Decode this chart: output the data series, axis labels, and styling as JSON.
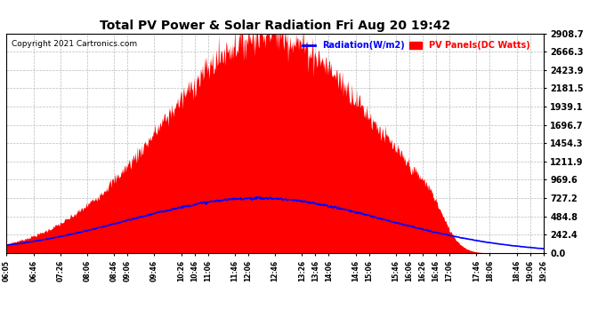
{
  "title": "Total PV Power & Solar Radiation Fri Aug 20 19:42",
  "copyright": "Copyright 2021 Cartronics.com",
  "legend_radiation": "Radiation(W/m2)",
  "legend_pv": "PV Panels(DC Watts)",
  "ymax": 2908.7,
  "yticks": [
    0.0,
    242.4,
    484.8,
    727.2,
    969.6,
    1211.9,
    1454.3,
    1696.7,
    1939.1,
    2181.5,
    2423.9,
    2666.3,
    2908.7
  ],
  "background_color": "#ffffff",
  "pv_color": "#ff0000",
  "radiation_color": "#0000ff",
  "grid_color": "#bbbbbb",
  "peak_pv": 2900.0,
  "peak_time_pv_min": 756,
  "sigma_pv_min": 155,
  "peak_rad": 727.0,
  "peak_time_rad_min": 740,
  "sigma_rad_min": 190,
  "noise_scale": 120,
  "xtick_labels": [
    "06:05",
    "06:46",
    "07:26",
    "08:06",
    "08:46",
    "09:06",
    "09:46",
    "10:26",
    "10:46",
    "11:06",
    "11:46",
    "12:06",
    "12:46",
    "13:26",
    "13:46",
    "14:06",
    "14:46",
    "15:06",
    "15:46",
    "16:06",
    "16:26",
    "16:46",
    "17:06",
    "17:46",
    "18:06",
    "18:46",
    "19:06",
    "19:26"
  ]
}
